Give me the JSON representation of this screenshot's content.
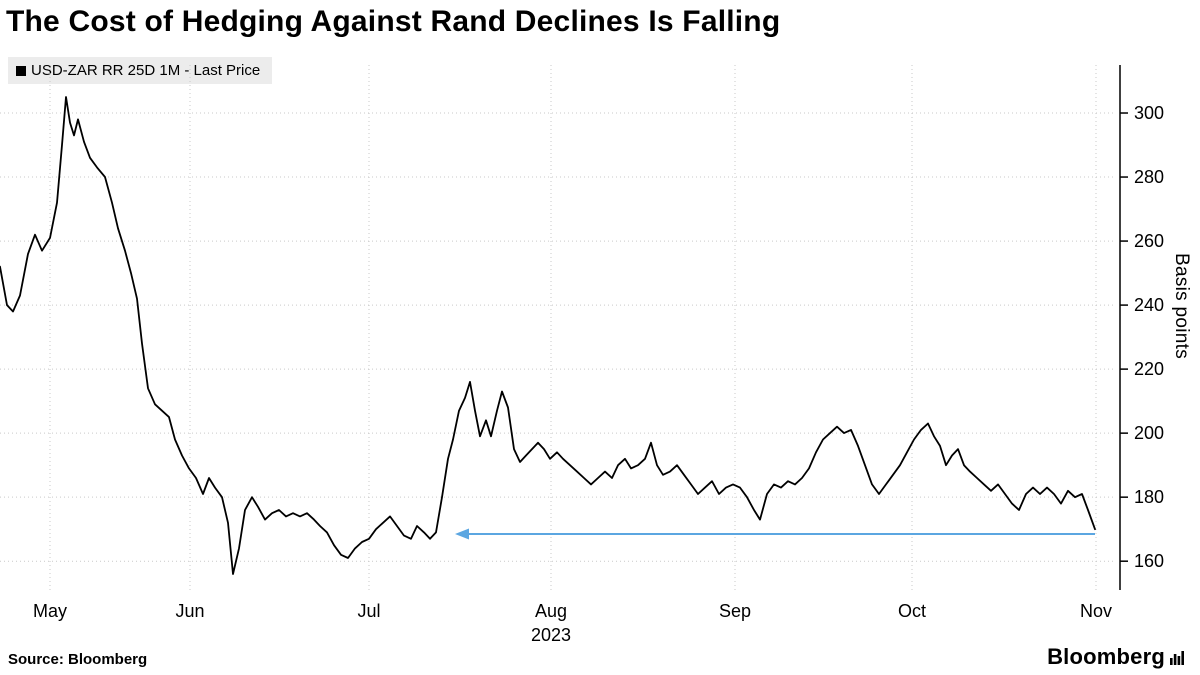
{
  "header": {
    "title": "The Cost of Hedging Against Rand Declines Is Falling",
    "legend": {
      "label": "USD-ZAR RR 25D 1M - Last Price",
      "marker_color": "#000000"
    }
  },
  "footer": {
    "source": "Source: Bloomberg",
    "brand": "Bloomberg"
  },
  "colors": {
    "line": "#000000",
    "grid": "#c9c9c9",
    "axis": "#000000",
    "arrow": "#5ba6e1",
    "legend_bg": "#ececec"
  },
  "chart_data": {
    "type": "line",
    "title": "The Cost of Hedging Against Rand Declines Is Falling",
    "ylabel": "Basis points",
    "x_axis": {
      "range": [
        0,
        1115
      ],
      "tick_labels": [
        "May",
        "Jun",
        "Jul",
        "Aug",
        "Sep",
        "Oct",
        "Nov"
      ],
      "tick_positions": [
        50,
        190,
        369,
        551,
        735,
        912,
        1096
      ],
      "secondary_label": "2023",
      "secondary_label_under": "Aug",
      "grid": "dotted",
      "note": "x units are relative plot positions, late April through early November 2023"
    },
    "y_axis": {
      "label": "Basis points",
      "ticks": [
        160,
        180,
        200,
        220,
        240,
        260,
        280,
        300
      ],
      "range": [
        151,
        315
      ],
      "side": "right",
      "grid": "dotted"
    },
    "series": [
      {
        "name": "USD-ZAR RR 25D 1M - Last Price",
        "color": "#000000",
        "points": [
          [
            0,
            252
          ],
          [
            7,
            240
          ],
          [
            13,
            238
          ],
          [
            20,
            243
          ],
          [
            28,
            256
          ],
          [
            35,
            262
          ],
          [
            42,
            257
          ],
          [
            50,
            261
          ],
          [
            57,
            272
          ],
          [
            62,
            290
          ],
          [
            66,
            305
          ],
          [
            70,
            297
          ],
          [
            74,
            293
          ],
          [
            78,
            298
          ],
          [
            84,
            291
          ],
          [
            90,
            286
          ],
          [
            97,
            283
          ],
          [
            105,
            280
          ],
          [
            112,
            272
          ],
          [
            118,
            264
          ],
          [
            125,
            257
          ],
          [
            131,
            250
          ],
          [
            137,
            242
          ],
          [
            142,
            228
          ],
          [
            148,
            214
          ],
          [
            155,
            209
          ],
          [
            162,
            207
          ],
          [
            169,
            205
          ],
          [
            175,
            198
          ],
          [
            182,
            193
          ],
          [
            189,
            189
          ],
          [
            196,
            186
          ],
          [
            203,
            181
          ],
          [
            209,
            186
          ],
          [
            215,
            183
          ],
          [
            222,
            180
          ],
          [
            228,
            172
          ],
          [
            233,
            156
          ],
          [
            239,
            164
          ],
          [
            245,
            176
          ],
          [
            252,
            180
          ],
          [
            258,
            177
          ],
          [
            265,
            173
          ],
          [
            272,
            175
          ],
          [
            279,
            176
          ],
          [
            286,
            174
          ],
          [
            293,
            175
          ],
          [
            300,
            174
          ],
          [
            307,
            175
          ],
          [
            314,
            173
          ],
          [
            320,
            171
          ],
          [
            327,
            169
          ],
          [
            334,
            165
          ],
          [
            341,
            162
          ],
          [
            348,
            161
          ],
          [
            355,
            164
          ],
          [
            362,
            166
          ],
          [
            369,
            167
          ],
          [
            376,
            170
          ],
          [
            383,
            172
          ],
          [
            390,
            174
          ],
          [
            397,
            171
          ],
          [
            404,
            168
          ],
          [
            411,
            167
          ],
          [
            417,
            171
          ],
          [
            424,
            169
          ],
          [
            430,
            167
          ],
          [
            436,
            169
          ],
          [
            442,
            180
          ],
          [
            448,
            192
          ],
          [
            453,
            198
          ],
          [
            459,
            207
          ],
          [
            465,
            211
          ],
          [
            470,
            216
          ],
          [
            475,
            207
          ],
          [
            480,
            199
          ],
          [
            486,
            204
          ],
          [
            491,
            199
          ],
          [
            497,
            207
          ],
          [
            502,
            213
          ],
          [
            508,
            208
          ],
          [
            514,
            195
          ],
          [
            520,
            191
          ],
          [
            526,
            193
          ],
          [
            532,
            195
          ],
          [
            538,
            197
          ],
          [
            544,
            195
          ],
          [
            550,
            192
          ],
          [
            557,
            194
          ],
          [
            563,
            192
          ],
          [
            570,
            190
          ],
          [
            577,
            188
          ],
          [
            584,
            186
          ],
          [
            591,
            184
          ],
          [
            598,
            186
          ],
          [
            605,
            188
          ],
          [
            612,
            186
          ],
          [
            618,
            190
          ],
          [
            625,
            192
          ],
          [
            631,
            189
          ],
          [
            638,
            190
          ],
          [
            645,
            192
          ],
          [
            651,
            197
          ],
          [
            657,
            190
          ],
          [
            663,
            187
          ],
          [
            670,
            188
          ],
          [
            677,
            190
          ],
          [
            684,
            187
          ],
          [
            691,
            184
          ],
          [
            698,
            181
          ],
          [
            705,
            183
          ],
          [
            712,
            185
          ],
          [
            719,
            181
          ],
          [
            726,
            183
          ],
          [
            733,
            184
          ],
          [
            740,
            183
          ],
          [
            747,
            180
          ],
          [
            754,
            176
          ],
          [
            760,
            173
          ],
          [
            767,
            181
          ],
          [
            774,
            184
          ],
          [
            781,
            183
          ],
          [
            788,
            185
          ],
          [
            795,
            184
          ],
          [
            802,
            186
          ],
          [
            809,
            189
          ],
          [
            816,
            194
          ],
          [
            823,
            198
          ],
          [
            830,
            200
          ],
          [
            837,
            202
          ],
          [
            844,
            200
          ],
          [
            851,
            201
          ],
          [
            858,
            196
          ],
          [
            865,
            190
          ],
          [
            872,
            184
          ],
          [
            879,
            181
          ],
          [
            886,
            184
          ],
          [
            893,
            187
          ],
          [
            900,
            190
          ],
          [
            907,
            194
          ],
          [
            914,
            198
          ],
          [
            921,
            201
          ],
          [
            928,
            203
          ],
          [
            934,
            199
          ],
          [
            940,
            196
          ],
          [
            946,
            190
          ],
          [
            952,
            193
          ],
          [
            958,
            195
          ],
          [
            964,
            190
          ],
          [
            970,
            188
          ],
          [
            977,
            186
          ],
          [
            984,
            184
          ],
          [
            991,
            182
          ],
          [
            998,
            184
          ],
          [
            1005,
            181
          ],
          [
            1012,
            178
          ],
          [
            1019,
            176
          ],
          [
            1026,
            181
          ],
          [
            1033,
            183
          ],
          [
            1040,
            181
          ],
          [
            1047,
            183
          ],
          [
            1054,
            181
          ],
          [
            1061,
            178
          ],
          [
            1068,
            182
          ],
          [
            1075,
            180
          ],
          [
            1082,
            181
          ],
          [
            1088,
            176
          ],
          [
            1095,
            170
          ]
        ]
      }
    ],
    "annotation": {
      "type": "arrow-left",
      "y_value": 168.5,
      "x_from": 1095,
      "x_to": 455,
      "color": "#5ba6e1"
    },
    "legend_position": "top-left",
    "grid": true
  }
}
